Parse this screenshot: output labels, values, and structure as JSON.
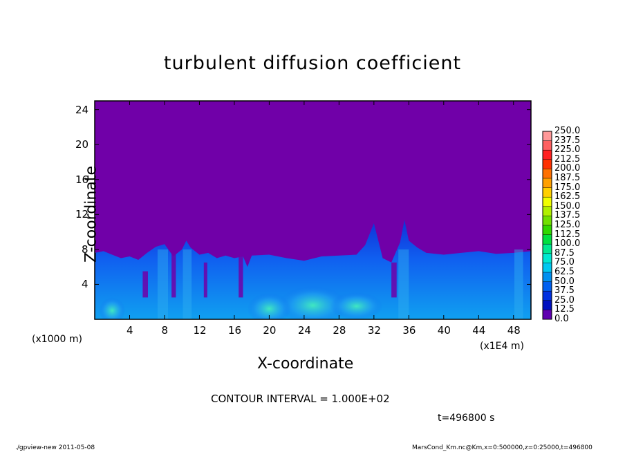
{
  "chart_data": {
    "type": "heatmap",
    "title": "turbulent diffusion coefficient",
    "xlabel": "X-coordinate",
    "ylabel": "Z-coordinate",
    "x_unit_left": "(x1000 m)",
    "x_unit_right": "(x1E4 m)",
    "xlim": [
      0,
      50
    ],
    "ylim": [
      0,
      25
    ],
    "x_ticks": [
      "4",
      "8",
      "12",
      "16",
      "20",
      "24",
      "28",
      "32",
      "36",
      "40",
      "44",
      "48"
    ],
    "y_ticks": [
      "4",
      "8",
      "12",
      "16",
      "20",
      "24"
    ],
    "colorbar": {
      "levels": [
        "250.0",
        "237.5",
        "225.0",
        "212.5",
        "200.0",
        "187.5",
        "175.0",
        "162.5",
        "150.0",
        "137.5",
        "125.0",
        "112.5",
        "100.0",
        "87.5",
        "75.0",
        "62.5",
        "50.0",
        "37.5",
        "25.0",
        "12.5",
        "0.0"
      ],
      "colors": [
        "#ff9898",
        "#ff6060",
        "#ff2020",
        "#ff3000",
        "#ff7000",
        "#ffa000",
        "#ffd000",
        "#f0ff00",
        "#b0f000",
        "#70e000",
        "#30d800",
        "#00e040",
        "#00e890",
        "#00e8d0",
        "#00c8f0",
        "#0090f0",
        "#0060f0",
        "#0030e0",
        "#0010c0",
        "#6000b0"
      ]
    },
    "background_color": "#7000a8",
    "contour_interval": "CONTOUR INTERVAL = 1.000E+02",
    "time_label": "t=496800 s"
  },
  "footer": {
    "left": "./gpview-new  2011-05-08",
    "right": "MarsCond_Km.nc@Km,x=0:500000,z=0:25000,t=496800"
  }
}
